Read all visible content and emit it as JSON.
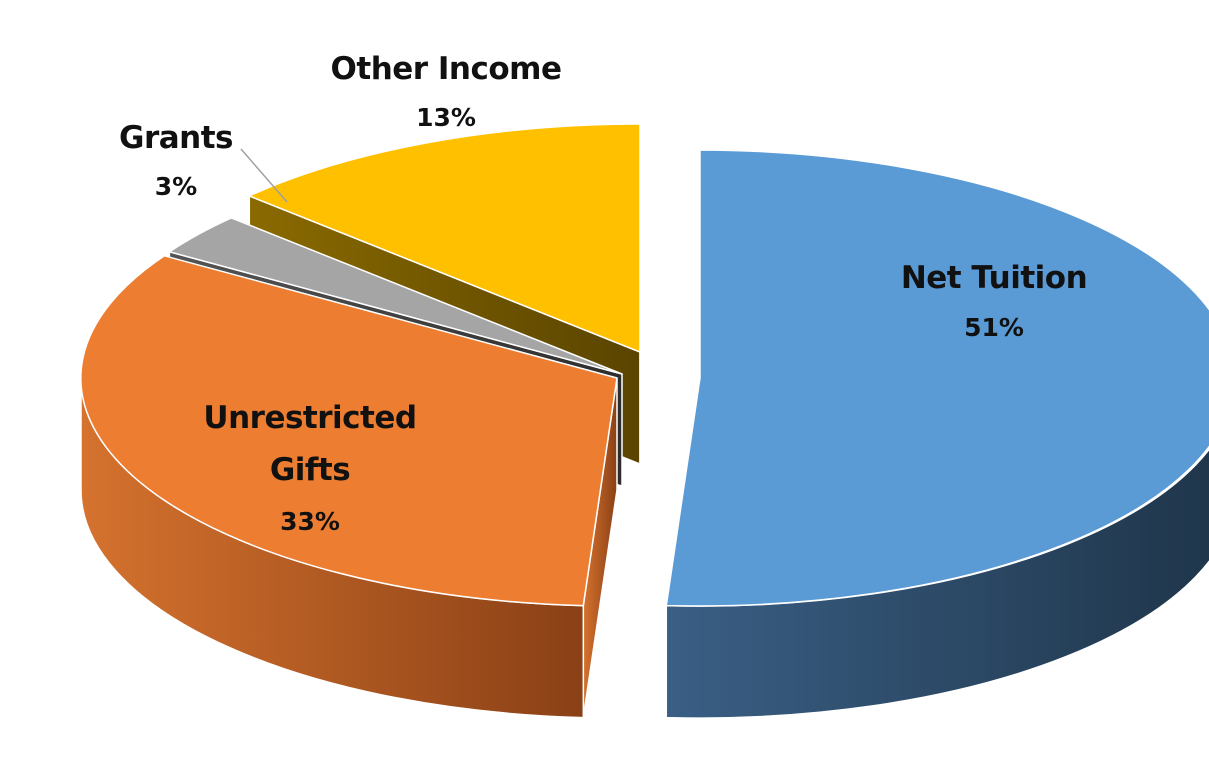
{
  "chart_data": {
    "type": "pie",
    "style": "3d-exploded",
    "slices": [
      {
        "label": "Net Tuition",
        "value": 51,
        "value_label": "51%",
        "color": "#5b9bd5"
      },
      {
        "label": "Unrestricted Gifts",
        "value": 33,
        "value_label": "33%",
        "color": "#ed7d31"
      },
      {
        "label": "Grants",
        "value": 3,
        "value_label": "3%",
        "color": "#a5a5a5"
      },
      {
        "label": "Other Income",
        "value": 13,
        "value_label": "13%",
        "color": "#ffc000"
      }
    ],
    "legend": "none"
  }
}
